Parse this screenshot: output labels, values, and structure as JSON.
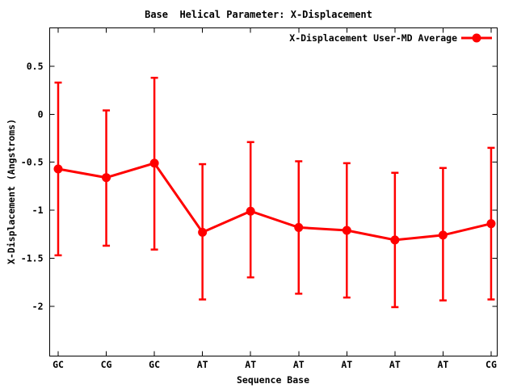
{
  "window": {
    "background": "#ffffff"
  },
  "colors": {
    "series": "#ff0000",
    "axis": "#000000",
    "text": "#000000",
    "background": "#ffffff"
  },
  "chart_data": {
    "type": "line",
    "title": "Base  Helical Parameter: X-Displacement",
    "xlabel": "Sequence Base",
    "ylabel": "X-Displacement (Angstroms)",
    "categories": [
      "GC",
      "CG",
      "GC",
      "AT",
      "AT",
      "AT",
      "AT",
      "AT",
      "AT",
      "CG"
    ],
    "series": [
      {
        "name": "X-Displacement User-MD Average",
        "color": "#ff0000",
        "marker": "filled-circle",
        "values": [
          -0.57,
          -0.66,
          -0.51,
          -1.23,
          -1.01,
          -1.18,
          -1.21,
          -1.31,
          -1.26,
          -1.14
        ],
        "error_high": [
          0.33,
          0.04,
          0.38,
          -0.52,
          -0.29,
          -0.49,
          -0.51,
          -0.61,
          -0.56,
          -0.35
        ],
        "error_low": [
          -1.47,
          -1.37,
          -1.41,
          -1.93,
          -1.7,
          -1.87,
          -1.91,
          -2.01,
          -1.94,
          -1.93
        ]
      }
    ],
    "ytick_labels": [
      "0.5",
      "0",
      "-0.5",
      "-1",
      "-1.5",
      "-2"
    ],
    "ytick_values": [
      0.5,
      0,
      -0.5,
      -1,
      -1.5,
      -2
    ],
    "ylim": [
      -2.52,
      0.9
    ],
    "grid": false,
    "legend_position": "top-right-inside",
    "tick_style": "inward-mirrored"
  }
}
